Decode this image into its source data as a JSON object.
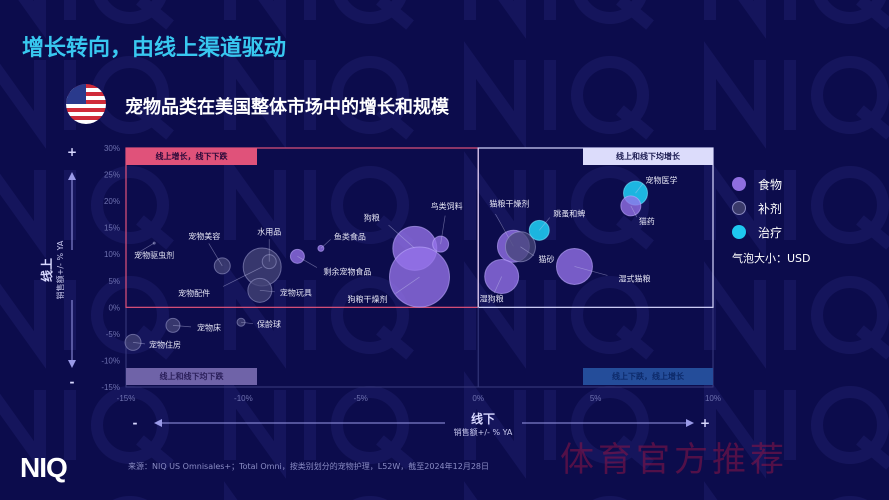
{
  "header": {
    "title": "增长转向，由线上渠道驱动",
    "subtitle": "宠物品类在美国整体市场中的增长和规模"
  },
  "watermark": "NIQ",
  "logo": "NIQ",
  "source": "来源：NIQ US Omnisales+；Total Omni，按类别划分的宠物护理，L52W，截至2024年12月28日",
  "stamp": "体育官方推荐",
  "colors": {
    "background": "#0c0c4c",
    "title": "#38c8f0",
    "food": "#8f6fe0",
    "supplement": "#3a3a6a",
    "treatment": "#1ec8f0",
    "quadrant_top_left": "#e0527a",
    "quadrant_top_right": "#d8d8ff",
    "quadrant_bottom_left": "#7d6fb0",
    "quadrant_bottom_right": "#1f4fa0"
  },
  "chart_data": {
    "type": "scatter",
    "subtype": "bubble",
    "xlabel": "线下",
    "xlabel_sub": "销售额+/- % YA",
    "ylabel": "线上",
    "ylabel_sub": "销售额+/- % YA",
    "xlim": [
      -15,
      10
    ],
    "ylim": [
      -15,
      30
    ],
    "x_ticks": [
      "-15%",
      "-10%",
      "-5%",
      "0%",
      "5%",
      "10%"
    ],
    "y_ticks": [
      "30%",
      "25%",
      "20%",
      "15%",
      "10%",
      "5%",
      "0%",
      "-5%",
      "-10%",
      "-15%"
    ],
    "x_ends": [
      "-",
      "+"
    ],
    "y_ends": [
      "+",
      "-"
    ],
    "grid": false,
    "legend_position": "right",
    "legend": [
      {
        "key": "food",
        "label": "食物"
      },
      {
        "key": "supplement",
        "label": "补剂"
      },
      {
        "key": "treatment",
        "label": "治疗"
      }
    ],
    "bubble_size_note": "气泡大小：USD",
    "quadrants": [
      {
        "position": "top-left",
        "label": "线上增长，线下下跌"
      },
      {
        "position": "top-right",
        "label": "线上和线下均增长"
      },
      {
        "position": "bottom-left",
        "label": "线上和线下均下跌"
      },
      {
        "position": "bottom-right",
        "label": "线上下跌，线上增长"
      }
    ],
    "points": [
      {
        "name": "宠物驱虫剂",
        "x": -13.8,
        "y": 12.1,
        "size": 0.3,
        "group": "supplement"
      },
      {
        "name": "宠物美容",
        "x": -10.9,
        "y": 7.8,
        "size": 8,
        "group": "supplement"
      },
      {
        "name": "宠物配件",
        "x": -9.2,
        "y": 7.6,
        "size": 19,
        "group": "supplement"
      },
      {
        "name": "水用品",
        "x": -8.9,
        "y": 8.6,
        "size": 7,
        "group": "supplement"
      },
      {
        "name": "宠物玩具",
        "x": -9.3,
        "y": 3.2,
        "size": 12,
        "group": "supplement"
      },
      {
        "name": "剩余宠物食品",
        "x": -7.7,
        "y": 9.6,
        "size": 7,
        "group": "food"
      },
      {
        "name": "鱼类食品",
        "x": -6.7,
        "y": 11.1,
        "size": 3,
        "group": "food"
      },
      {
        "name": "狗粮",
        "x": -2.7,
        "y": 11.1,
        "size": 22,
        "group": "food"
      },
      {
        "name": "鸟类饲料",
        "x": -1.6,
        "y": 11.9,
        "size": 8,
        "group": "food"
      },
      {
        "name": "狗粮干燥剂",
        "x": -2.5,
        "y": 5.7,
        "size": 30,
        "group": "food"
      },
      {
        "name": "宠物床",
        "x": -13.0,
        "y": -3.4,
        "size": 7,
        "group": "supplement"
      },
      {
        "name": "保龄球",
        "x": -10.1,
        "y": -2.8,
        "size": 4,
        "group": "supplement"
      },
      {
        "name": "宠物住房",
        "x": -14.7,
        "y": -6.6,
        "size": 8,
        "group": "supplement"
      },
      {
        "name": "猫粮干燥剂",
        "x": 1.5,
        "y": 11.5,
        "size": 16,
        "group": "food"
      },
      {
        "name": "猫砂",
        "x": 1.8,
        "y": 11.4,
        "size": 15,
        "group": "supplement"
      },
      {
        "name": "跳蚤和蜱",
        "x": 2.6,
        "y": 14.5,
        "size": 10,
        "group": "treatment"
      },
      {
        "name": "湿狗粮",
        "x": 1.0,
        "y": 5.8,
        "size": 17,
        "group": "food"
      },
      {
        "name": "湿式猫粮",
        "x": 4.1,
        "y": 7.7,
        "size": 18,
        "group": "food"
      },
      {
        "name": "宠物医学",
        "x": 6.7,
        "y": 21.5,
        "size": 12,
        "group": "treatment"
      },
      {
        "name": "猫药",
        "x": 6.5,
        "y": 19.1,
        "size": 10,
        "group": "food"
      }
    ]
  }
}
